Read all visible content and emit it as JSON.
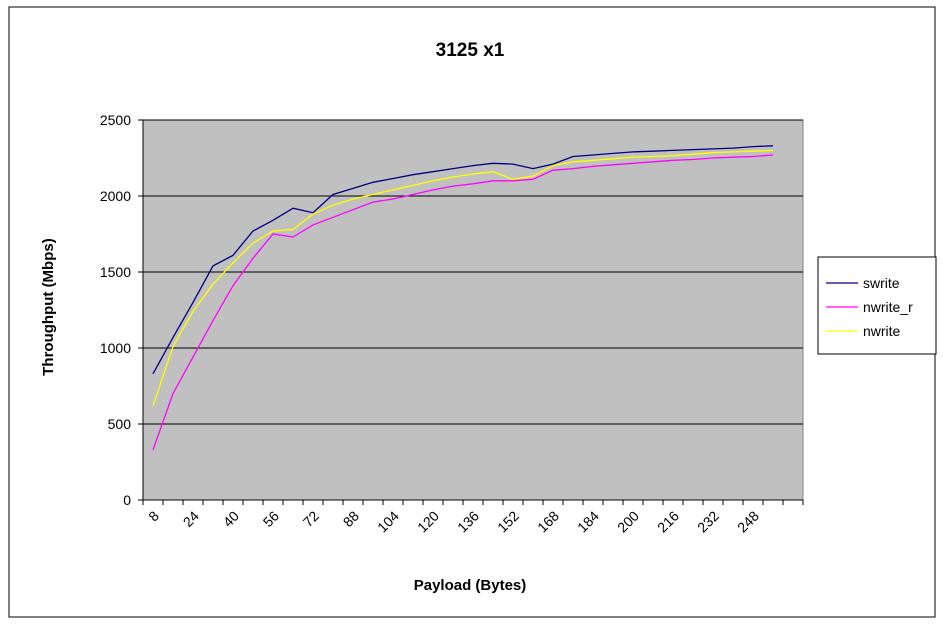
{
  "chart_data": {
    "type": "line",
    "title": "3125 x1",
    "xlabel": "Payload (Bytes)",
    "ylabel": "Throughput (Mbps)",
    "ylim": [
      0,
      2500
    ],
    "yticks": [
      "0",
      "500",
      "1000",
      "1500",
      "2000",
      "2500"
    ],
    "x": [
      8,
      16,
      24,
      32,
      40,
      48,
      56,
      64,
      72,
      80,
      88,
      96,
      104,
      112,
      120,
      128,
      136,
      144,
      152,
      160,
      168,
      176,
      184,
      192,
      200,
      208,
      216,
      224,
      232,
      240,
      248,
      256,
      264
    ],
    "xtick_labels": [
      "8",
      "24",
      "40",
      "56",
      "72",
      "88",
      "104",
      "120",
      "136",
      "152",
      "168",
      "184",
      "200",
      "216",
      "232",
      "248"
    ],
    "grid": "horizontal",
    "plot_background": "#c0c0c0",
    "legend_position": "right",
    "series": [
      {
        "name": "swrite",
        "color": "#000080",
        "values": [
          830,
          1070,
          1300,
          1540,
          1610,
          1770,
          1840,
          1920,
          1890,
          2010,
          2050,
          2090,
          2115,
          2140,
          2160,
          2180,
          2200,
          2215,
          2210,
          2180,
          2210,
          2260,
          2270,
          2280,
          2290,
          2295,
          2300,
          2305,
          2310,
          2315,
          2325,
          2330,
          null
        ]
      },
      {
        "name": "nwrite_r",
        "color": "#ff00ff",
        "values": [
          330,
          700,
          940,
          1180,
          1410,
          1590,
          1750,
          1730,
          1810,
          1860,
          1910,
          1960,
          1980,
          2010,
          2040,
          2065,
          2080,
          2100,
          2100,
          2110,
          2170,
          2180,
          2195,
          2205,
          2215,
          2225,
          2235,
          2240,
          2250,
          2255,
          2260,
          2270,
          null
        ]
      },
      {
        "name": "nwrite",
        "color": "#ffff00",
        "values": [
          620,
          1010,
          1240,
          1420,
          1560,
          1690,
          1770,
          1780,
          1880,
          1940,
          1980,
          2010,
          2040,
          2070,
          2100,
          2125,
          2145,
          2160,
          2110,
          2130,
          2200,
          2225,
          2235,
          2245,
          2255,
          2260,
          2265,
          2275,
          2285,
          2290,
          2295,
          2300,
          null
        ]
      }
    ]
  }
}
